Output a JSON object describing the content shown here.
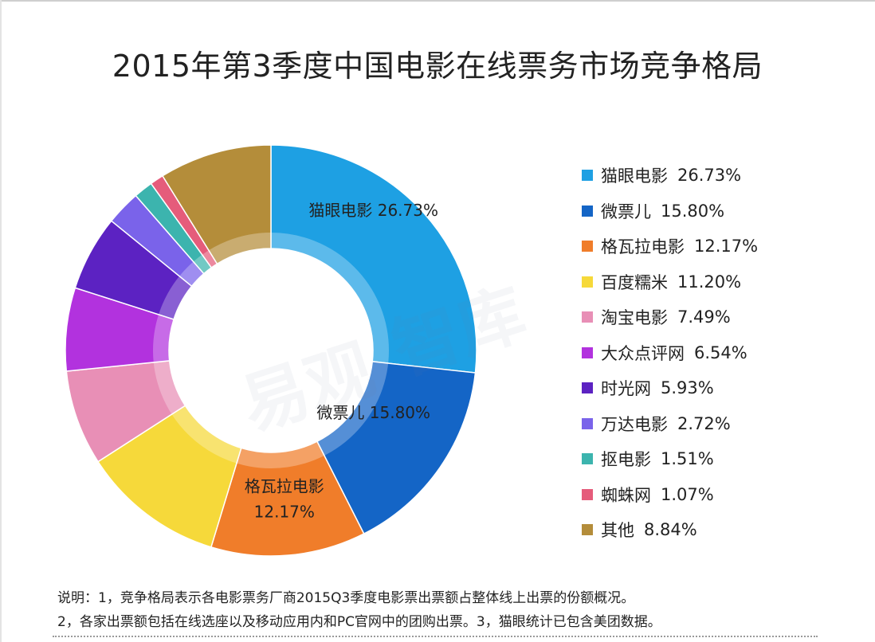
{
  "chart_data": {
    "type": "pie",
    "variant": "donut",
    "title": "2015年第3季度中国电影在线票务市场竞争格局",
    "legend_position": "right",
    "unit": "%",
    "slices": [
      {
        "label": "猫眼电影",
        "value": 26.73,
        "value_text": "26.73%",
        "color": "#1ea0e3"
      },
      {
        "label": "微票儿",
        "value": 15.8,
        "value_text": "15.80%",
        "color": "#1465c6"
      },
      {
        "label": "格瓦拉电影",
        "value": 12.17,
        "value_text": "12.17%",
        "color": "#f07d2a"
      },
      {
        "label": "百度糯米",
        "value": 11.2,
        "value_text": "11.20%",
        "color": "#f6d93a"
      },
      {
        "label": "淘宝电影",
        "value": 7.49,
        "value_text": "7.49%",
        "color": "#e88fb6"
      },
      {
        "label": "大众点评网",
        "value": 6.54,
        "value_text": "6.54%",
        "color": "#b232de"
      },
      {
        "label": "时光网",
        "value": 5.93,
        "value_text": "5.93%",
        "color": "#5c22c2"
      },
      {
        "label": "万达电影",
        "value": 2.72,
        "value_text": "2.72%",
        "color": "#7a63ea"
      },
      {
        "label": "抠电影",
        "value": 1.51,
        "value_text": "1.51%",
        "color": "#3cb4ae"
      },
      {
        "label": "蜘蛛网",
        "value": 1.07,
        "value_text": "1.07%",
        "color": "#e55c7b"
      },
      {
        "label": "其他",
        "value": 8.84,
        "value_text": "8.84%",
        "color": "#b48d3a"
      }
    ],
    "data_labels": [
      {
        "slice": 0,
        "lines": [
          "猫眼电影  26.73%"
        ]
      },
      {
        "slice": 1,
        "lines": [
          "微票儿  15.80%"
        ]
      },
      {
        "slice": 2,
        "lines": [
          "格瓦拉电影",
          "12.17%"
        ]
      }
    ]
  },
  "watermark": "易观智库",
  "notes": {
    "line1": "说明：1，竞争格局表示各电影票务厂商2015Q3季度电影票出票额占整体线上出票的份额概况。",
    "line2": "2，各家出票额包括在线选座以及移动应用内和PC官网中的团购出票。3，猫眼统计已包含美团数据。"
  }
}
